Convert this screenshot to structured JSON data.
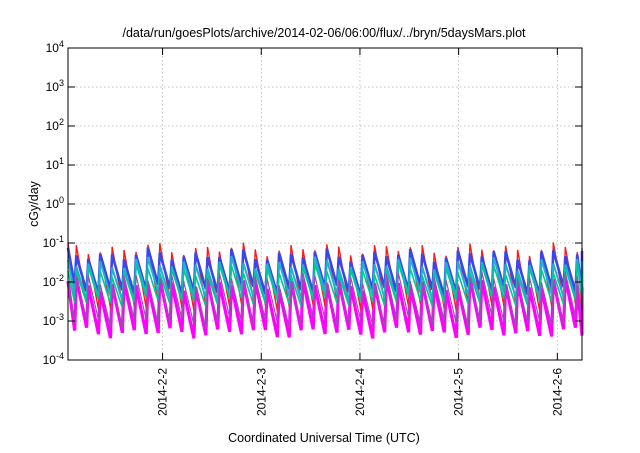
{
  "chart_data": {
    "type": "line",
    "title": "/data/run/goesPlots/archive/2014-02-06/06:00/flux/../bryn/5daysMars.plot",
    "xlabel": "Coordinated Universal Time (UTC)",
    "ylabel": "cGy/day",
    "yscale": "log",
    "ylim": [
      0.0001,
      10000
    ],
    "y_ticks": [
      {
        "value": 0.0001,
        "base": "10",
        "exp": "-4"
      },
      {
        "value": 0.001,
        "base": "10",
        "exp": "-3"
      },
      {
        "value": 0.01,
        "base": "10",
        "exp": "-2"
      },
      {
        "value": 0.1,
        "base": "10",
        "exp": "-1"
      },
      {
        "value": 1,
        "base": "10",
        "exp": "0"
      },
      {
        "value": 10,
        "base": "10",
        "exp": "1"
      },
      {
        "value": 100,
        "base": "10",
        "exp": "2"
      },
      {
        "value": 1000,
        "base": "10",
        "exp": "3"
      },
      {
        "value": 10000,
        "base": "10",
        "exp": "4"
      }
    ],
    "xlim": [
      "2014-02-01T01:00",
      "2014-02-06T06:00"
    ],
    "x_ticks": [
      {
        "value": "2014-02-02T00:00",
        "label": "2014-2-2"
      },
      {
        "value": "2014-02-03T00:00",
        "label": "2014-2-3"
      },
      {
        "value": "2014-02-04T00:00",
        "label": "2014-2-4"
      },
      {
        "value": "2014-02-05T00:00",
        "label": "2014-2-5"
      },
      {
        "value": "2014-02-06T00:00",
        "label": "2014-2-6"
      }
    ],
    "grid": true,
    "legend": "none",
    "series_note": "sawtooth with ~3 h period",
    "series": [
      {
        "color": "#ff00ff",
        "peak": 0.009,
        "trough": 0.0005,
        "lw": 3.2
      },
      {
        "color": "#ff1a1a",
        "peak": 0.07,
        "trough": 0.0025,
        "lw": 1.4
      },
      {
        "color": "#3c46e6",
        "peak": 0.05,
        "trough": 0.006,
        "lw": 2.6
      },
      {
        "color": "#20b0d0",
        "peak": 0.03,
        "trough": 0.004,
        "lw": 2.0
      },
      {
        "color": "#00c896",
        "peak": 0.02,
        "trough": 0.003,
        "lw": 1.6
      },
      {
        "color": "#9a4fb0",
        "peak": 0.012,
        "trough": 0.0009,
        "lw": 1.2
      }
    ],
    "period_hours": 2.9
  }
}
